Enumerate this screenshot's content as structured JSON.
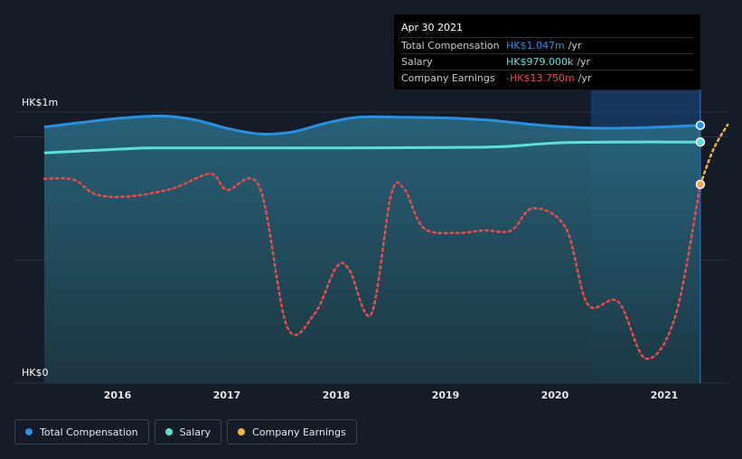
{
  "chart_data": {
    "type": "line",
    "title": "",
    "y_axis": {
      "top_label": "HK$1m",
      "bottom_label": "HK$0",
      "ylim": [
        0,
        1.1
      ]
    },
    "x_ticks": [
      "2016",
      "2017",
      "2018",
      "2019",
      "2020",
      "2021"
    ],
    "xlim": [
      2015.33,
      2021.58
    ],
    "series": [
      {
        "name": "Total Compensation",
        "color": "#2a8fe0",
        "style": "solid-area",
        "points": [
          [
            2015.33,
            1.04
          ],
          [
            2015.7,
            1.06
          ],
          [
            2016.0,
            1.075
          ],
          [
            2016.4,
            1.085
          ],
          [
            2016.7,
            1.07
          ],
          [
            2017.0,
            1.035
          ],
          [
            2017.3,
            1.012
          ],
          [
            2017.6,
            1.02
          ],
          [
            2017.9,
            1.055
          ],
          [
            2018.2,
            1.08
          ],
          [
            2018.6,
            1.08
          ],
          [
            2019.0,
            1.077
          ],
          [
            2019.4,
            1.068
          ],
          [
            2019.8,
            1.05
          ],
          [
            2020.2,
            1.038
          ],
          [
            2020.5,
            1.035
          ],
          [
            2020.8,
            1.037
          ],
          [
            2021.33,
            1.047
          ]
        ]
      },
      {
        "name": "Salary",
        "color": "#5fe0d6",
        "style": "solid",
        "points": [
          [
            2015.33,
            0.935
          ],
          [
            2016.0,
            0.95
          ],
          [
            2016.3,
            0.955
          ],
          [
            2017.0,
            0.955
          ],
          [
            2018.0,
            0.955
          ],
          [
            2019.0,
            0.957
          ],
          [
            2019.5,
            0.96
          ],
          [
            2020.0,
            0.975
          ],
          [
            2020.5,
            0.979
          ],
          [
            2021.33,
            0.979
          ]
        ]
      },
      {
        "name": "Company Earnings",
        "color": "#ef4b4b",
        "style": "dotted",
        "points": [
          [
            2015.33,
            0.83
          ],
          [
            2015.6,
            0.826
          ],
          [
            2015.8,
            0.767
          ],
          [
            2016.1,
            0.758
          ],
          [
            2016.5,
            0.79
          ],
          [
            2016.85,
            0.85
          ],
          [
            2017.0,
            0.785
          ],
          [
            2017.3,
            0.795
          ],
          [
            2017.55,
            0.23
          ],
          [
            2017.8,
            0.28
          ],
          [
            2018.0,
            0.47
          ],
          [
            2018.12,
            0.46
          ],
          [
            2018.32,
            0.28
          ],
          [
            2018.5,
            0.76
          ],
          [
            2018.62,
            0.79
          ],
          [
            2018.8,
            0.63
          ],
          [
            2019.1,
            0.61
          ],
          [
            2019.35,
            0.62
          ],
          [
            2019.6,
            0.62
          ],
          [
            2019.8,
            0.71
          ],
          [
            2020.1,
            0.63
          ],
          [
            2020.3,
            0.32
          ],
          [
            2020.58,
            0.33
          ],
          [
            2020.83,
            0.1
          ],
          [
            2021.1,
            0.27
          ],
          [
            2021.33,
            0.807
          ]
        ]
      },
      {
        "name": "Company Earnings (forecast)",
        "color": "#f0b44a",
        "style": "dotted",
        "points": [
          [
            2021.33,
            0.807
          ],
          [
            2021.45,
            0.95
          ],
          [
            2021.58,
            1.05
          ]
        ]
      }
    ],
    "highlight_range": [
      2020.33,
      2021.33
    ],
    "tooltip": {
      "date": "Apr 30 2021",
      "rows": [
        {
          "label": "Total Compensation",
          "value": "HK$1.047m",
          "unit": "/yr",
          "color": "#2a8fe0"
        },
        {
          "label": "Salary",
          "value": "HK$979.000k",
          "unit": "/yr",
          "color": "#5fe0d6"
        },
        {
          "label": "Company Earnings",
          "value": "-HK$13.750m",
          "unit": "/yr",
          "color": "#ef4b4b"
        }
      ]
    },
    "legend": [
      {
        "label": "Total Compensation",
        "color": "#2a8fe0"
      },
      {
        "label": "Salary",
        "color": "#5fe0d6"
      },
      {
        "label": "Company Earnings",
        "color": "#f0b44a"
      }
    ]
  }
}
